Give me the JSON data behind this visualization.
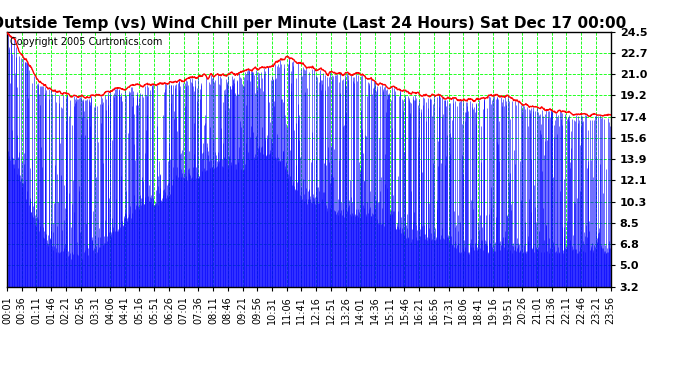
{
  "title": "Outside Temp (vs) Wind Chill per Minute (Last 24 Hours) Sat Dec 17 00:00",
  "copyright": "Copyright 2005 Curtronics.com",
  "yticks": [
    3.2,
    5.0,
    6.8,
    8.5,
    10.3,
    12.1,
    13.9,
    15.6,
    17.4,
    19.2,
    21.0,
    22.7,
    24.5
  ],
  "ylim": [
    3.2,
    24.5
  ],
  "xtick_labels": [
    "00:01",
    "00:36",
    "01:11",
    "01:46",
    "02:21",
    "02:56",
    "03:31",
    "04:06",
    "04:41",
    "05:16",
    "05:51",
    "06:26",
    "07:01",
    "07:36",
    "08:11",
    "08:46",
    "09:21",
    "09:56",
    "10:31",
    "11:06",
    "11:41",
    "12:16",
    "12:51",
    "13:26",
    "14:01",
    "14:36",
    "15:11",
    "15:46",
    "16:21",
    "16:56",
    "17:31",
    "18:06",
    "18:41",
    "19:16",
    "19:51",
    "20:26",
    "21:01",
    "21:36",
    "22:11",
    "22:46",
    "23:21",
    "23:56"
  ],
  "bg_color": "#ffffff",
  "plot_bg_color": "#ffffff",
  "grid_color": "#00ff00",
  "blue_color": "#0000ff",
  "red_color": "#ff0000",
  "title_fontsize": 11,
  "copyright_fontsize": 7,
  "tick_fontsize": 7,
  "ytick_fontsize": 8
}
